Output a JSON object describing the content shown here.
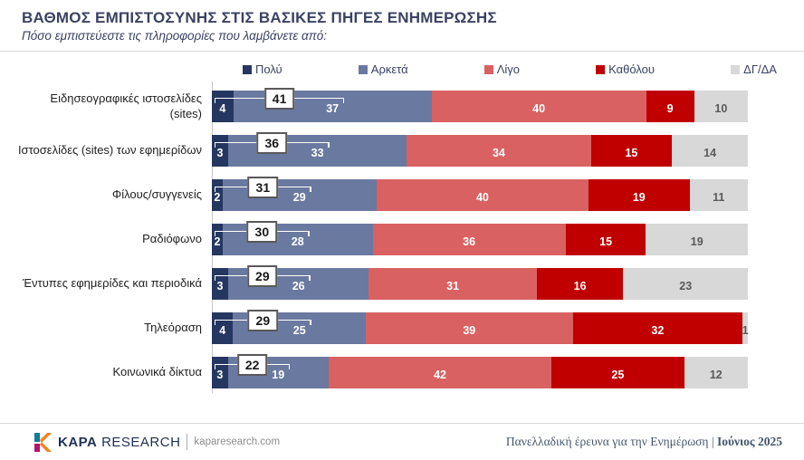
{
  "header": {
    "title": "ΒΑΘΜΟΣ ΕΜΠΙΣΤΟΣΥΝΗΣ ΣΤΙΣ ΒΑΣΙΚΕΣ ΠΗΓΕΣ ΕΝΗΜΕΡΩΣΗΣ",
    "subtitle": "Πόσο εμπιστεύεστε τις πληροφορίες που λαμβάνετε από:"
  },
  "legend": [
    {
      "label": "Πολύ",
      "color": "#253761"
    },
    {
      "label": "Αρκετά",
      "color": "#6a79a0"
    },
    {
      "label": "Λίγο",
      "color": "#d96161"
    },
    {
      "label": "Καθόλου",
      "color": "#c00000"
    },
    {
      "label": "ΔΓ/ΔΑ",
      "color": "#d8d8d8"
    }
  ],
  "chart_data": {
    "type": "bar",
    "orientation": "horizontal",
    "stacked": true,
    "units": "percent",
    "series_names": [
      "Πολύ",
      "Αρκετά",
      "Λίγο",
      "Καθόλου",
      "ΔΓ/ΔΑ"
    ],
    "series_colors": [
      "#253761",
      "#6a79a0",
      "#d96161",
      "#c00000",
      "#d8d8d8"
    ],
    "net_note": "boxed value = Πολύ + Αρκετά",
    "rows": [
      {
        "category": "Ειδησεογραφικές ιστοσελίδες\n(sites)",
        "values": [
          4,
          37,
          40,
          9,
          10
        ],
        "net": 41
      },
      {
        "category": "Ιστοσελίδες (sites) των εφημερίδων",
        "values": [
          3,
          33,
          34,
          15,
          14
        ],
        "net": 36
      },
      {
        "category": "Φίλους/συγγενείς",
        "values": [
          2,
          29,
          40,
          19,
          11
        ],
        "net": 31
      },
      {
        "category": "Ραδιόφωνο",
        "values": [
          2,
          28,
          36,
          15,
          19
        ],
        "net": 30
      },
      {
        "category": "Έντυπες εφημερίδες και περιοδικά",
        "values": [
          3,
          26,
          31,
          16,
          23
        ],
        "net": 29
      },
      {
        "category": "Τηλεόραση",
        "values": [
          4,
          25,
          39,
          32,
          1
        ],
        "net": 29
      },
      {
        "category": "Κοινωνικά δίκτυα",
        "values": [
          3,
          19,
          42,
          25,
          12
        ],
        "net": 22
      }
    ]
  },
  "footer": {
    "brand_bold": "KAPA",
    "brand_rest": "RESEARCH",
    "website": "kaparesearch.com",
    "survey_text": "Πανελλαδική έρευνα για την Ενημέρωση",
    "pipe": "|",
    "survey_date": "Ιούνιος 2025"
  }
}
